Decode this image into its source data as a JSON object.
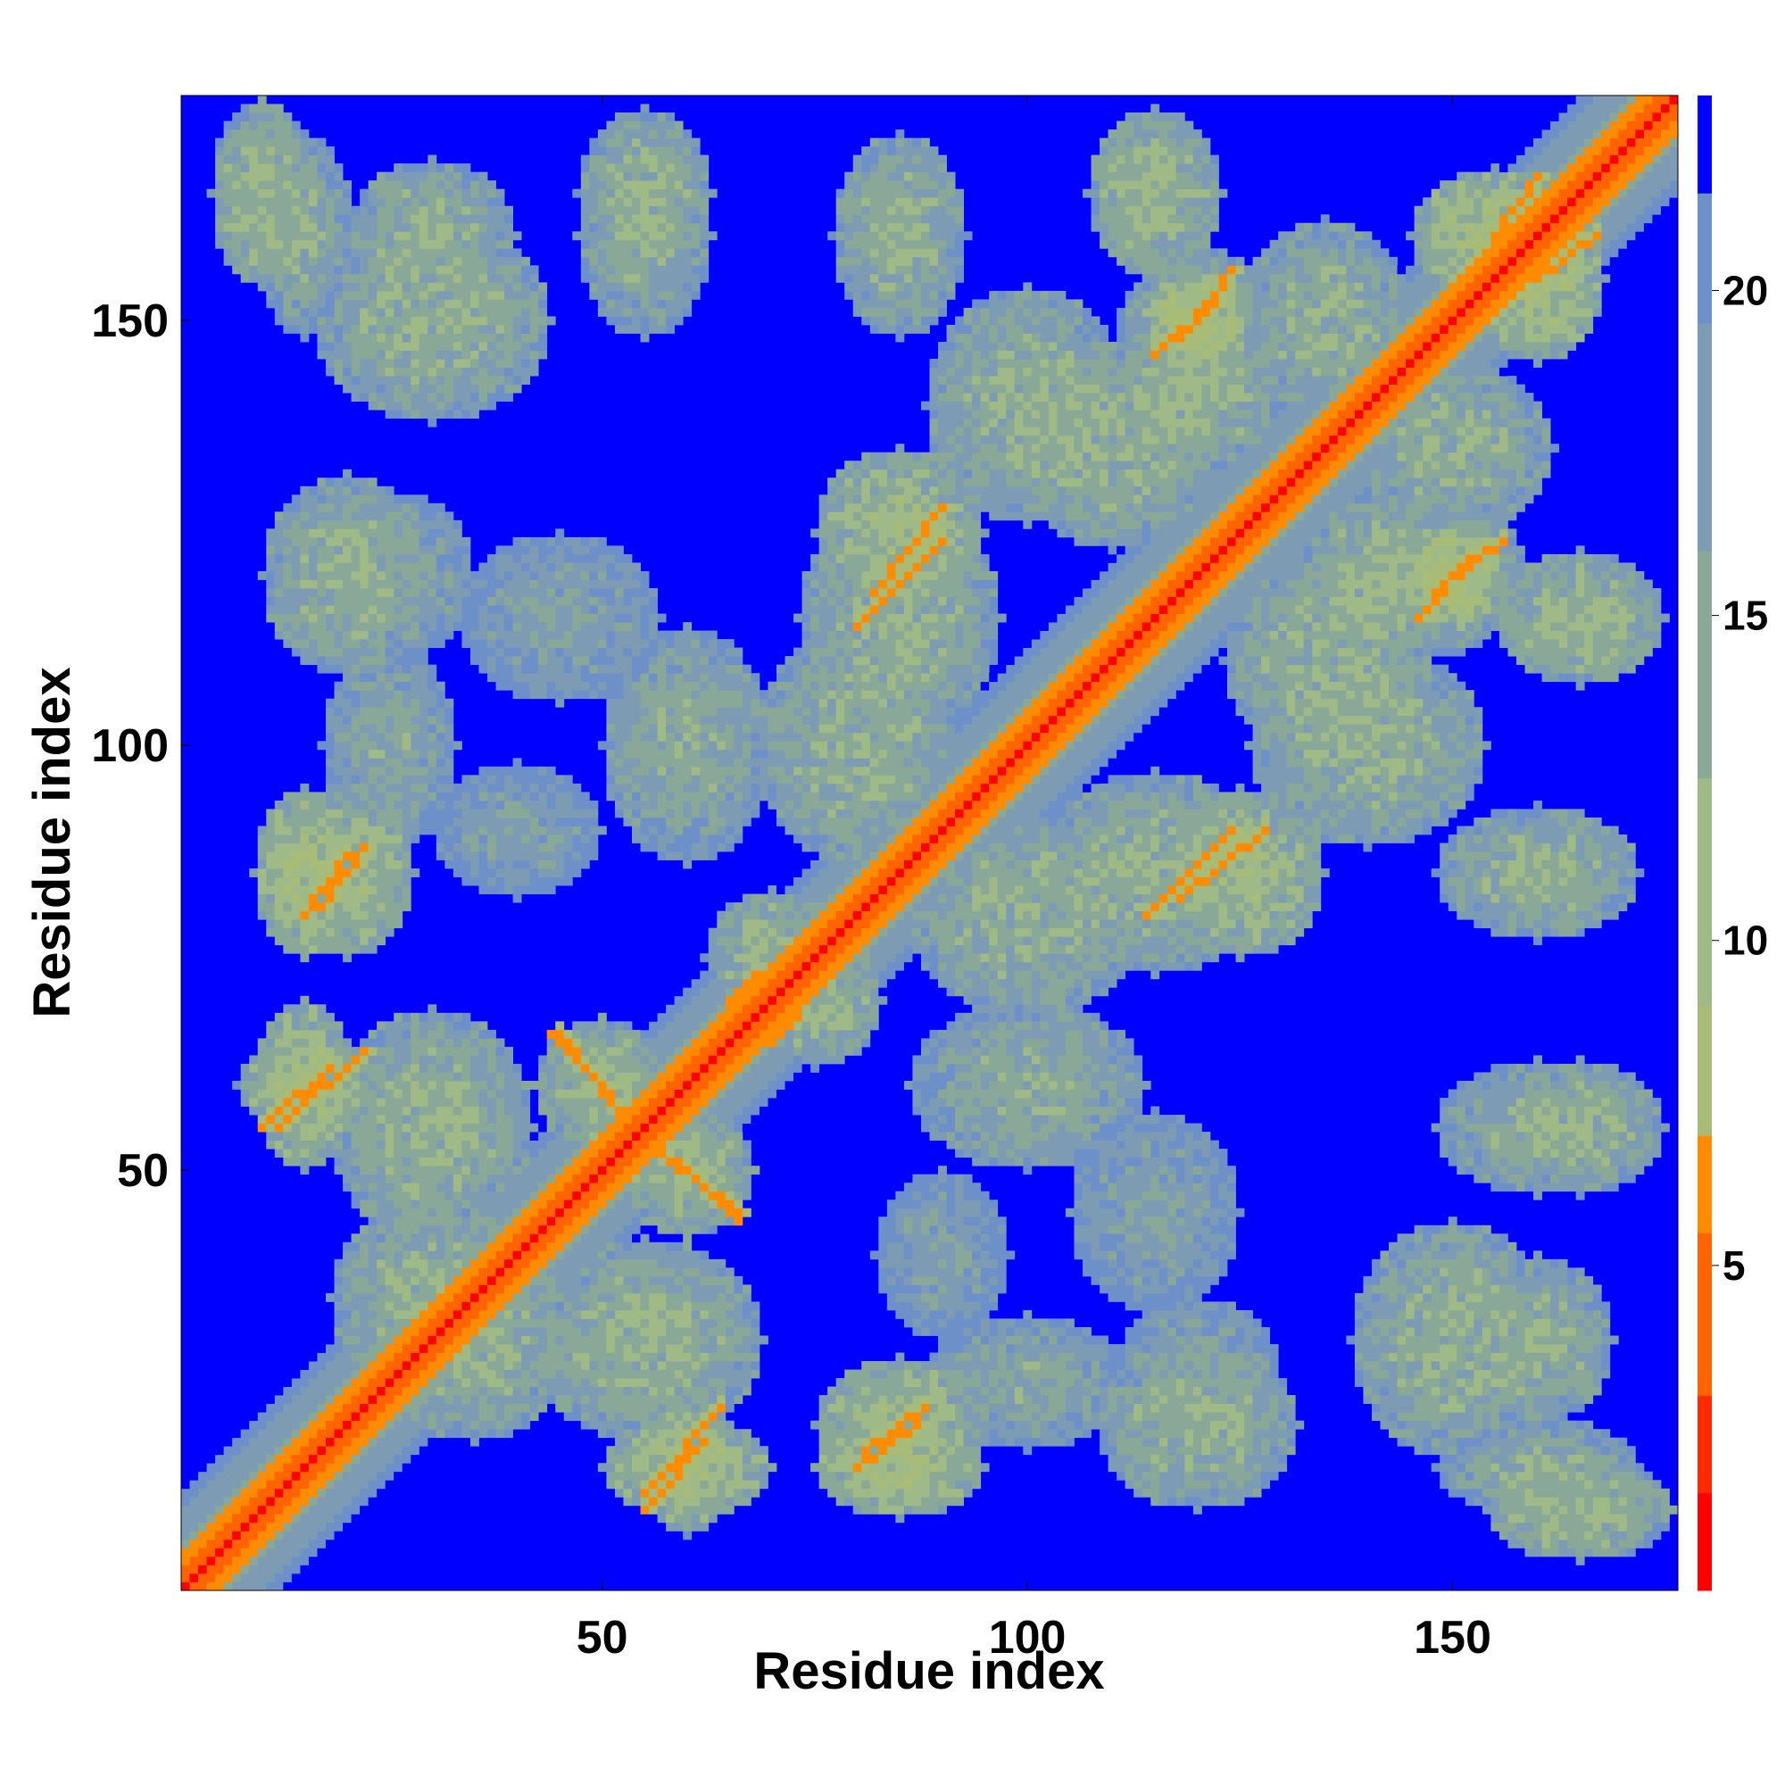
{
  "chart_data": {
    "type": "heatmap",
    "title": "",
    "xlabel": "Residue index",
    "ylabel": "Residue index",
    "n_residues": 176,
    "xlim": [
      1,
      176
    ],
    "ylim": [
      1,
      176
    ],
    "x_ticks": [
      50,
      100,
      150
    ],
    "y_ticks": [
      50,
      100,
      150
    ],
    "colorbar": {
      "ticks": [
        5,
        10,
        15,
        20
      ],
      "range": [
        0,
        23
      ],
      "levels": [
        {
          "from": 0,
          "to": 1.5,
          "color": "#ff0000"
        },
        {
          "from": 1.5,
          "to": 3,
          "color": "#ff2a00"
        },
        {
          "from": 3,
          "to": 5.5,
          "color": "#ff6400"
        },
        {
          "from": 5.5,
          "to": 7,
          "color": "#ff8c00"
        },
        {
          "from": 7,
          "to": 9,
          "color": "#a8bc78"
        },
        {
          "from": 9,
          "to": 12.5,
          "color": "#9fba86"
        },
        {
          "from": 12.5,
          "to": 16,
          "color": "#8aa898"
        },
        {
          "from": 16,
          "to": 19.5,
          "color": "#7d9cb4"
        },
        {
          "from": 19.5,
          "to": 21.5,
          "color": "#6d90c8"
        },
        {
          "from": 21.5,
          "to": 23,
          "color": "#0000ff"
        }
      ]
    },
    "background_value": 23,
    "diagonal": {
      "core_value": 1,
      "band_width": 4
    },
    "contact_clusters": [
      {
        "x": 10,
        "y": 165,
        "rx": 6,
        "ry": 11,
        "value": 12
      },
      {
        "x": 30,
        "y": 160,
        "rx": 10,
        "ry": 9,
        "value": 13
      },
      {
        "x": 55,
        "y": 165,
        "rx": 8,
        "ry": 10,
        "value": 13
      },
      {
        "x": 85,
        "y": 160,
        "rx": 8,
        "ry": 12,
        "value": 13
      },
      {
        "x": 115,
        "y": 165,
        "rx": 8,
        "ry": 10,
        "value": 12
      },
      {
        "x": 120,
        "y": 150,
        "rx": 6,
        "ry": 6,
        "value": 8
      },
      {
        "x": 155,
        "y": 160,
        "rx": 10,
        "ry": 8,
        "value": 10
      },
      {
        "x": 20,
        "y": 120,
        "rx": 10,
        "ry": 12,
        "value": 13
      },
      {
        "x": 20,
        "y": 85,
        "rx": 8,
        "ry": 10,
        "value": 11
      },
      {
        "x": 15,
        "y": 60,
        "rx": 8,
        "ry": 6,
        "value": 11
      },
      {
        "x": 30,
        "y": 55,
        "rx": 12,
        "ry": 10,
        "value": 14
      },
      {
        "x": 30,
        "y": 35,
        "rx": 12,
        "ry": 12,
        "value": 13
      },
      {
        "x": 55,
        "y": 30,
        "rx": 14,
        "ry": 12,
        "value": 13
      },
      {
        "x": 60,
        "y": 15,
        "rx": 10,
        "ry": 6,
        "value": 10
      },
      {
        "x": 85,
        "y": 15,
        "rx": 10,
        "ry": 6,
        "value": 10
      },
      {
        "x": 100,
        "y": 25,
        "rx": 12,
        "ry": 8,
        "value": 15
      },
      {
        "x": 120,
        "y": 25,
        "rx": 10,
        "ry": 10,
        "value": 15
      },
      {
        "x": 150,
        "y": 30,
        "rx": 12,
        "ry": 14,
        "value": 13
      },
      {
        "x": 160,
        "y": 15,
        "rx": 12,
        "ry": 6,
        "value": 14
      },
      {
        "x": 160,
        "y": 55,
        "rx": 12,
        "ry": 8,
        "value": 14
      },
      {
        "x": 50,
        "y": 60,
        "rx": 8,
        "ry": 8,
        "value": 12
      },
      {
        "x": 60,
        "y": 100,
        "rx": 10,
        "ry": 14,
        "value": 14
      },
      {
        "x": 85,
        "y": 115,
        "rx": 12,
        "ry": 14,
        "value": 13
      },
      {
        "x": 100,
        "y": 80,
        "rx": 14,
        "ry": 12,
        "value": 13
      },
      {
        "x": 125,
        "y": 85,
        "rx": 10,
        "ry": 10,
        "value": 11
      },
      {
        "x": 140,
        "y": 100,
        "rx": 14,
        "ry": 12,
        "value": 13
      },
      {
        "x": 145,
        "y": 120,
        "rx": 14,
        "ry": 10,
        "value": 12
      },
      {
        "x": 150,
        "y": 135,
        "rx": 12,
        "ry": 10,
        "value": 13
      },
      {
        "x": 110,
        "y": 135,
        "rx": 12,
        "ry": 12,
        "value": 13
      },
      {
        "x": 100,
        "y": 60,
        "rx": 10,
        "ry": 10,
        "value": 16
      },
      {
        "x": 115,
        "y": 45,
        "rx": 10,
        "ry": 12,
        "value": 16
      },
      {
        "x": 90,
        "y": 40,
        "rx": 8,
        "ry": 10,
        "value": 16
      },
      {
        "x": 75,
        "y": 70,
        "rx": 8,
        "ry": 8,
        "value": 12
      }
    ],
    "contact_lines": [
      {
        "x1": 82,
        "y1": 118,
        "x2": 90,
        "y2": 128,
        "value": 6
      },
      {
        "x1": 118,
        "y1": 148,
        "x2": 124,
        "y2": 156,
        "value": 6
      },
      {
        "x1": 155,
        "y1": 160,
        "x2": 160,
        "y2": 167,
        "value": 6
      },
      {
        "x1": 44,
        "y1": 66,
        "x2": 56,
        "y2": 53,
        "value": 6
      },
      {
        "x1": 56,
        "y1": 53,
        "x2": 66,
        "y2": 45,
        "value": 6
      },
      {
        "x1": 114,
        "y1": 80,
        "x2": 124,
        "y2": 90,
        "value": 6
      },
      {
        "x1": 146,
        "y1": 115,
        "x2": 152,
        "y2": 122,
        "value": 6
      },
      {
        "x1": 55,
        "y1": 10,
        "x2": 62,
        "y2": 18,
        "value": 6
      },
      {
        "x1": 80,
        "y1": 15,
        "x2": 87,
        "y2": 20,
        "value": 6
      },
      {
        "x1": 12,
        "y1": 55,
        "x2": 22,
        "y2": 64,
        "value": 6
      },
      {
        "x1": 17,
        "y1": 81,
        "x2": 22,
        "y2": 88,
        "value": 6
      },
      {
        "x1": 30,
        "y1": 33,
        "x2": 36,
        "y2": 38,
        "value": 6
      },
      {
        "x1": 65,
        "y1": 70,
        "x2": 72,
        "y2": 76,
        "value": 6
      },
      {
        "x1": 94,
        "y1": 95,
        "x2": 104,
        "y2": 106,
        "value": 5
      }
    ]
  }
}
